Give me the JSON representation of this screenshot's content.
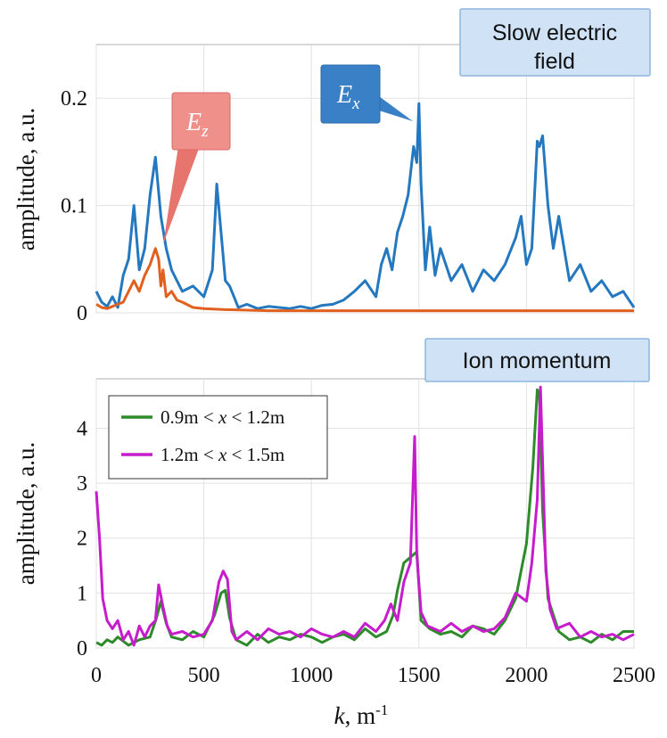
{
  "chart_data": [
    {
      "type": "line",
      "title": "Slow electric field",
      "xlabel": "",
      "ylabel": "amplitude, a.u.",
      "xlim": [
        0,
        2500
      ],
      "ylim": [
        0,
        0.25
      ],
      "xticks": [
        0,
        500,
        1000,
        1500,
        2000,
        2500
      ],
      "yticks": [
        0,
        0.1,
        0.2
      ],
      "ytick_labels": [
        "0",
        "0.1",
        "0.2"
      ],
      "grid": true,
      "annotations": [
        {
          "text_main": "E",
          "text_sub": "x",
          "color": "#3a80c6",
          "points_to": [
            1480,
            0.19
          ]
        },
        {
          "text_main": "E",
          "text_sub": "z",
          "color": "#e8746e",
          "points_to": [
            320,
            0.065
          ]
        }
      ],
      "series": [
        {
          "name": "Ex",
          "color": "#2478c0",
          "x": [
            0,
            25,
            50,
            75,
            100,
            125,
            150,
            175,
            200,
            225,
            250,
            275,
            300,
            325,
            350,
            375,
            400,
            450,
            500,
            540,
            560,
            580,
            600,
            620,
            640,
            660,
            700,
            750,
            800,
            850,
            900,
            950,
            1000,
            1050,
            1100,
            1150,
            1200,
            1250,
            1300,
            1325,
            1350,
            1375,
            1400,
            1425,
            1450,
            1475,
            1490,
            1500,
            1510,
            1530,
            1550,
            1575,
            1600,
            1650,
            1700,
            1750,
            1800,
            1850,
            1900,
            1950,
            1975,
            2000,
            2025,
            2050,
            2060,
            2075,
            2100,
            2125,
            2150,
            2200,
            2250,
            2300,
            2350,
            2400,
            2450,
            2500
          ],
          "y": [
            0.02,
            0.01,
            0.006,
            0.015,
            0.005,
            0.035,
            0.05,
            0.1,
            0.04,
            0.06,
            0.11,
            0.145,
            0.09,
            0.06,
            0.04,
            0.03,
            0.02,
            0.025,
            0.015,
            0.04,
            0.12,
            0.075,
            0.03,
            0.025,
            0.015,
            0.005,
            0.008,
            0.004,
            0.006,
            0.005,
            0.004,
            0.006,
            0.004,
            0.007,
            0.008,
            0.012,
            0.02,
            0.03,
            0.015,
            0.045,
            0.06,
            0.04,
            0.075,
            0.09,
            0.11,
            0.155,
            0.14,
            0.195,
            0.12,
            0.04,
            0.08,
            0.035,
            0.06,
            0.03,
            0.045,
            0.02,
            0.04,
            0.03,
            0.045,
            0.07,
            0.09,
            0.045,
            0.06,
            0.16,
            0.155,
            0.165,
            0.1,
            0.06,
            0.09,
            0.03,
            0.045,
            0.02,
            0.03,
            0.015,
            0.02,
            0.005
          ]
        },
        {
          "name": "Ez",
          "color": "#e0611f",
          "x": [
            0,
            25,
            50,
            75,
            100,
            125,
            150,
            175,
            200,
            225,
            250,
            275,
            290,
            300,
            310,
            325,
            350,
            375,
            400,
            450,
            500,
            600,
            800,
            1000,
            1500,
            2000,
            2500
          ],
          "y": [
            0.008,
            0.005,
            0.004,
            0.006,
            0.008,
            0.01,
            0.02,
            0.03,
            0.02,
            0.035,
            0.045,
            0.06,
            0.05,
            0.025,
            0.04,
            0.015,
            0.02,
            0.012,
            0.01,
            0.005,
            0.004,
            0.003,
            0.002,
            0.002,
            0.002,
            0.002,
            0.002
          ]
        }
      ]
    },
    {
      "type": "line",
      "title": "Ion momentum",
      "xlabel": "k, m-1",
      "ylabel": "amplitude, a.u.",
      "xlim": [
        0,
        2500
      ],
      "ylim": [
        0,
        4.9
      ],
      "xticks": [
        0,
        500,
        1000,
        1500,
        2000,
        2500
      ],
      "xtick_labels": [
        "0",
        "500",
        "1000",
        "1500",
        "2000",
        "2500"
      ],
      "yticks": [
        0,
        1,
        2,
        3,
        4
      ],
      "ytick_labels": [
        "0",
        "1",
        "2",
        "3",
        "4"
      ],
      "grid": true,
      "legend": [
        {
          "left": "0.9m < ",
          "var": "x",
          "right": " < 1.2m",
          "color": "#2e8b2a"
        },
        {
          "left": "1.2m < ",
          "var": "x",
          "right": " < 1.5m",
          "color": "#c61ccc"
        }
      ],
      "series": [
        {
          "name": "0.9m < x < 1.2m",
          "color": "#2e8b2a",
          "x": [
            0,
            25,
            50,
            75,
            100,
            150,
            200,
            250,
            280,
            300,
            325,
            350,
            400,
            450,
            500,
            550,
            580,
            600,
            620,
            650,
            700,
            750,
            800,
            850,
            900,
            950,
            1000,
            1050,
            1100,
            1150,
            1200,
            1250,
            1300,
            1350,
            1380,
            1400,
            1430,
            1460,
            1490,
            1510,
            1550,
            1600,
            1650,
            1700,
            1750,
            1800,
            1850,
            1900,
            1950,
            2000,
            2030,
            2050,
            2060,
            2075,
            2100,
            2150,
            2200,
            2250,
            2300,
            2350,
            2400,
            2450,
            2500
          ],
          "y": [
            0.1,
            0.05,
            0.15,
            0.1,
            0.2,
            0.05,
            0.15,
            0.2,
            0.55,
            0.85,
            0.45,
            0.2,
            0.15,
            0.3,
            0.2,
            0.6,
            1.0,
            1.05,
            0.55,
            0.15,
            0.05,
            0.25,
            0.1,
            0.2,
            0.15,
            0.25,
            0.2,
            0.1,
            0.2,
            0.25,
            0.15,
            0.35,
            0.2,
            0.3,
            0.6,
            1.05,
            1.55,
            1.65,
            1.75,
            0.5,
            0.35,
            0.25,
            0.3,
            0.2,
            0.4,
            0.35,
            0.25,
            0.5,
            0.9,
            1.9,
            3.3,
            4.7,
            4.6,
            2.5,
            0.9,
            0.3,
            0.15,
            0.2,
            0.1,
            0.25,
            0.15,
            0.3,
            0.3
          ]
        },
        {
          "name": "1.2m < x < 1.5m",
          "color": "#c61ccc",
          "x": [
            0,
            15,
            30,
            50,
            75,
            100,
            125,
            150,
            175,
            200,
            225,
            250,
            275,
            290,
            310,
            330,
            350,
            400,
            450,
            500,
            540,
            570,
            590,
            610,
            630,
            650,
            700,
            750,
            800,
            850,
            900,
            950,
            1000,
            1050,
            1100,
            1150,
            1200,
            1250,
            1300,
            1340,
            1370,
            1400,
            1430,
            1460,
            1480,
            1490,
            1510,
            1540,
            1600,
            1650,
            1700,
            1750,
            1800,
            1850,
            1900,
            1950,
            2000,
            2025,
            2050,
            2065,
            2075,
            2090,
            2110,
            2140,
            2200,
            2250,
            2300,
            2350,
            2400,
            2450,
            2500
          ],
          "y": [
            2.85,
            2.0,
            0.9,
            0.5,
            0.35,
            0.5,
            0.15,
            0.3,
            0.05,
            0.4,
            0.2,
            0.4,
            0.5,
            1.15,
            0.75,
            0.4,
            0.25,
            0.3,
            0.2,
            0.25,
            0.5,
            1.2,
            1.4,
            1.25,
            0.3,
            0.15,
            0.3,
            0.15,
            0.35,
            0.25,
            0.3,
            0.2,
            0.35,
            0.25,
            0.2,
            0.3,
            0.2,
            0.45,
            0.3,
            0.5,
            0.8,
            0.5,
            1.2,
            1.55,
            3.85,
            1.7,
            0.65,
            0.4,
            0.3,
            0.45,
            0.3,
            0.4,
            0.3,
            0.35,
            0.55,
            1.0,
            0.85,
            1.55,
            2.7,
            4.75,
            3.4,
            1.4,
            0.7,
            0.35,
            0.45,
            0.2,
            0.3,
            0.2,
            0.25,
            0.15,
            0.25
          ]
        }
      ]
    }
  ]
}
